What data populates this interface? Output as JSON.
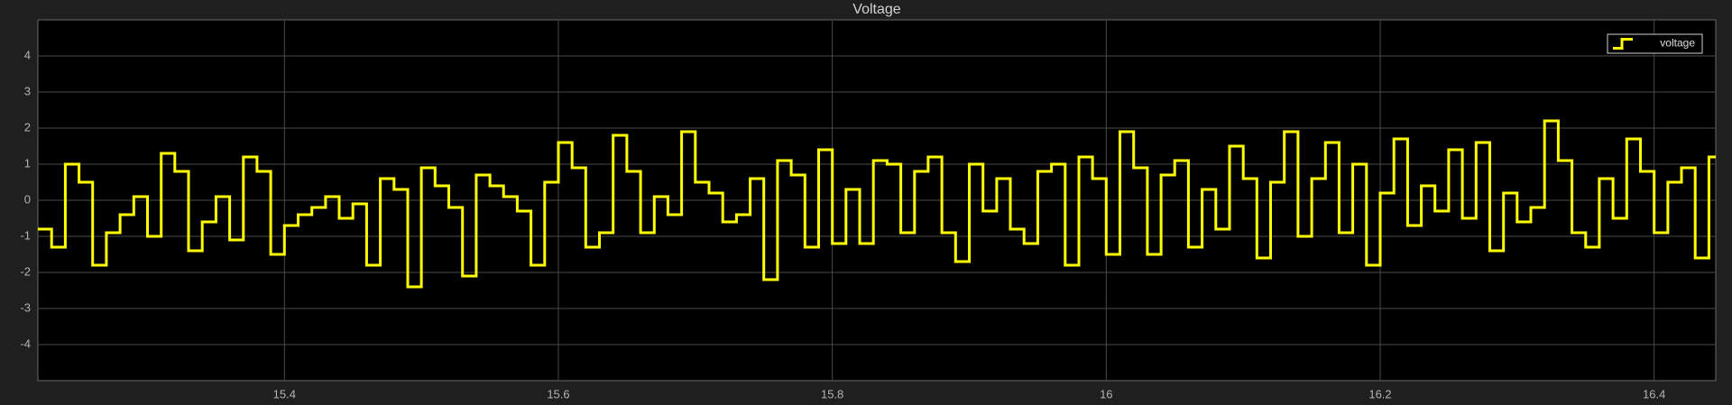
{
  "chart_data": {
    "type": "line",
    "title": "Voltage",
    "x": [
      15.22,
      15.23,
      15.24,
      15.25,
      15.26,
      15.27,
      15.28,
      15.29,
      15.3,
      15.31,
      15.32,
      15.33,
      15.34,
      15.35,
      15.36,
      15.37,
      15.38,
      15.39,
      15.4,
      15.41,
      15.42,
      15.43,
      15.44,
      15.45,
      15.46,
      15.47,
      15.48,
      15.49,
      15.5,
      15.51,
      15.52,
      15.53,
      15.54,
      15.55,
      15.56,
      15.57,
      15.58,
      15.59,
      15.6,
      15.61,
      15.62,
      15.63,
      15.64,
      15.65,
      15.66,
      15.67,
      15.68,
      15.69,
      15.7,
      15.71,
      15.72,
      15.73,
      15.74,
      15.75,
      15.76,
      15.77,
      15.78,
      15.79,
      15.8,
      15.81,
      15.82,
      15.83,
      15.84,
      15.85,
      15.86,
      15.87,
      15.88,
      15.89,
      15.9,
      15.91,
      15.92,
      15.93,
      15.94,
      15.95,
      15.96,
      15.97,
      15.98,
      15.99,
      16.0,
      16.01,
      16.02,
      16.03,
      16.04,
      16.05,
      16.06,
      16.07,
      16.08,
      16.09,
      16.1,
      16.11,
      16.12,
      16.13,
      16.14,
      16.15,
      16.16,
      16.17,
      16.18,
      16.19,
      16.2,
      16.21,
      16.22,
      16.23,
      16.24,
      16.25,
      16.26,
      16.27,
      16.28,
      16.29,
      16.3,
      16.31,
      16.32,
      16.33,
      16.34,
      16.35,
      16.36,
      16.37,
      16.38,
      16.39,
      16.4,
      16.41,
      16.42,
      16.43,
      16.44
    ],
    "series": [
      {
        "name": "voltage",
        "color": "#ffff00",
        "values": [
          -0.8,
          -1.3,
          1.0,
          0.5,
          -1.8,
          -0.9,
          -0.4,
          0.1,
          -1.0,
          1.3,
          0.8,
          -1.4,
          -0.6,
          0.1,
          -1.1,
          1.2,
          0.8,
          -1.5,
          -0.7,
          -0.4,
          -0.2,
          0.1,
          -0.5,
          -0.1,
          -1.8,
          0.6,
          0.3,
          -2.4,
          0.9,
          0.4,
          -0.2,
          -2.1,
          0.7,
          0.4,
          0.1,
          -0.3,
          -1.8,
          0.5,
          1.6,
          0.9,
          -1.3,
          -0.9,
          1.8,
          0.8,
          -0.9,
          0.1,
          -0.4,
          1.9,
          0.5,
          0.2,
          -0.6,
          -0.4,
          0.6,
          -2.2,
          1.1,
          0.7,
          -1.3,
          1.4,
          -1.2,
          0.3,
          -1.2,
          1.1,
          1.0,
          -0.9,
          0.8,
          1.2,
          -0.9,
          -1.7,
          1.0,
          -0.3,
          0.6,
          -0.8,
          -1.2,
          0.8,
          1.0,
          -1.8,
          1.2,
          0.6,
          -1.5,
          1.9,
          0.9,
          -1.5,
          0.7,
          1.1,
          -1.3,
          0.3,
          -0.8,
          1.5,
          0.6,
          -1.6,
          0.5,
          1.9,
          -1.0,
          0.6,
          1.6,
          -0.9,
          1.0,
          -1.8,
          0.2,
          1.7,
          -0.7,
          0.4,
          -0.3,
          1.4,
          -0.5,
          1.6,
          -1.4,
          0.2,
          -0.6,
          -0.2,
          2.2,
          1.1,
          -0.9,
          -1.3,
          0.6,
          -0.5,
          1.7,
          0.8,
          -0.9,
          0.5,
          0.9,
          -1.6,
          1.2
        ]
      }
    ],
    "xlim": [
      15.22,
      16.445
    ],
    "ylim": [
      -5,
      5
    ],
    "xticks": [
      15.4,
      15.6,
      15.8,
      16,
      16.2,
      16.4
    ],
    "yticks": [
      4,
      3,
      2,
      1,
      0,
      -1,
      -2,
      -3,
      -4
    ],
    "grid": true,
    "legend": "upper right"
  }
}
